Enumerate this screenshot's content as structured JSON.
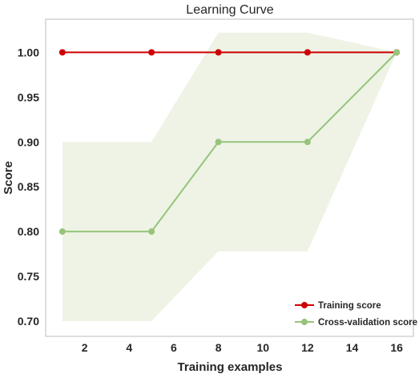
{
  "chart_data": {
    "type": "line",
    "title": "Learning Curve",
    "xlabel": "Training examples",
    "ylabel": "Score",
    "xlim": [
      0.25,
      16.75
    ],
    "ylim": [
      0.683,
      1.037
    ],
    "xticks": [
      2,
      4,
      6,
      8,
      10,
      12,
      14,
      16
    ],
    "yticks": [
      0.7,
      0.75,
      0.8,
      0.85,
      0.9,
      0.95,
      1.0
    ],
    "grid": false,
    "legend_position": "lower-right",
    "x": [
      1,
      5,
      8,
      12,
      16
    ],
    "series": [
      {
        "name": "Training score",
        "color": "#cc0000",
        "values": [
          1.0,
          1.0,
          1.0,
          1.0,
          1.0
        ],
        "band_lower": [
          1.0,
          1.0,
          1.0,
          1.0,
          1.0
        ],
        "band_upper": [
          1.0,
          1.0,
          1.0,
          1.0,
          1.0
        ]
      },
      {
        "name": "Cross-validation score",
        "color": "#96c47a",
        "values": [
          0.8,
          0.8,
          0.9,
          0.9,
          1.0
        ],
        "band_lower": [
          0.7,
          0.7,
          0.778,
          0.778,
          1.0
        ],
        "band_upper": [
          0.9,
          0.9,
          1.022,
          1.022,
          1.0
        ],
        "band_color": "#eef3e6"
      }
    ]
  }
}
